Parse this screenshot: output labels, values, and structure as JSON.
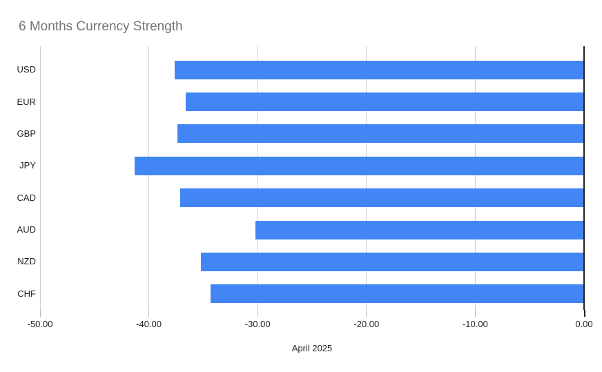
{
  "colors": {
    "background": "#ffffff",
    "bar": "#4285f4",
    "title": "#757575",
    "axis_text": "#222222",
    "gridline": "#d0d0d0",
    "baseline": "#212121",
    "tick": "#b7b7b7"
  },
  "chart_data": {
    "type": "bar",
    "orientation": "horizontal",
    "title": "6 Months Currency Strength",
    "xlabel": "April 2025",
    "ylabel": "",
    "categories": [
      "USD",
      "EUR",
      "GBP",
      "JPY",
      "CAD",
      "AUD",
      "NZD",
      "CHF"
    ],
    "values": [
      -37.6,
      -36.6,
      -37.4,
      -41.3,
      -37.1,
      -30.2,
      -35.2,
      -34.3
    ],
    "xlim": [
      -50,
      0
    ],
    "x_tick_labels": [
      "-50.00",
      "-40.00",
      "-30.00",
      "-20.00",
      "-10.00",
      "0.00"
    ],
    "grid": true,
    "legend": "none"
  }
}
